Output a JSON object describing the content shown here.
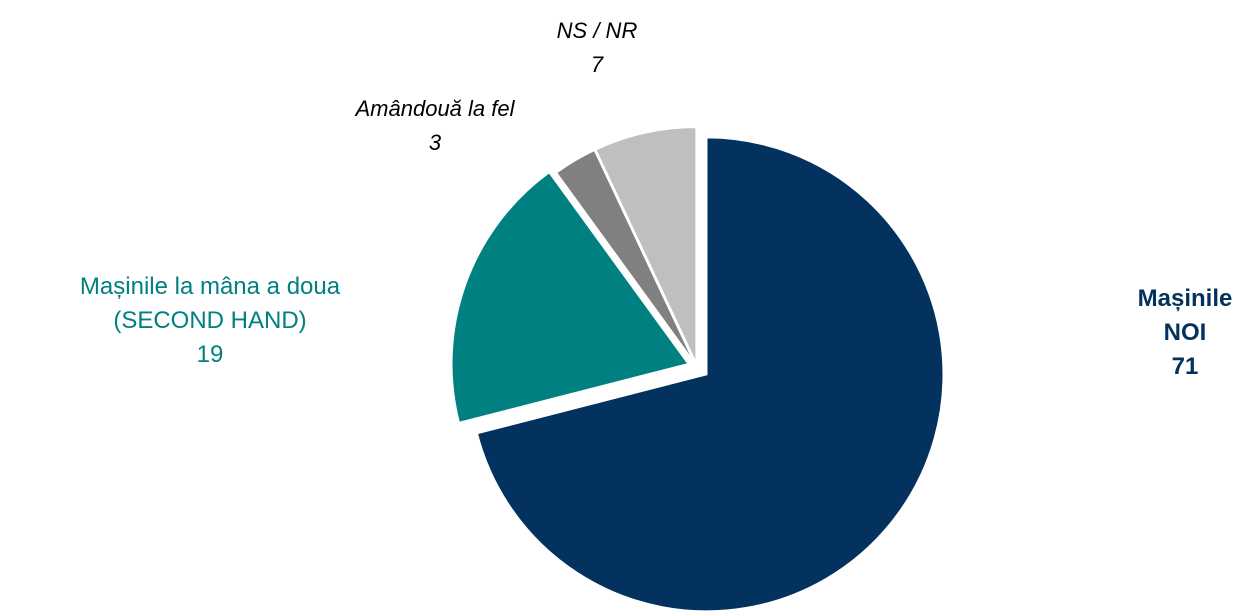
{
  "chart_data": {
    "type": "pie",
    "categories": [
      "Mașinile NOI",
      "Mașinile la mâna a doua\n(SECOND HAND)",
      "Amândouă la fel",
      "NS / NR"
    ],
    "values": [
      71,
      19,
      3,
      7
    ],
    "colors": [
      "#03325f",
      "#008080",
      "#808080",
      "#bfbfbf"
    ]
  }
}
